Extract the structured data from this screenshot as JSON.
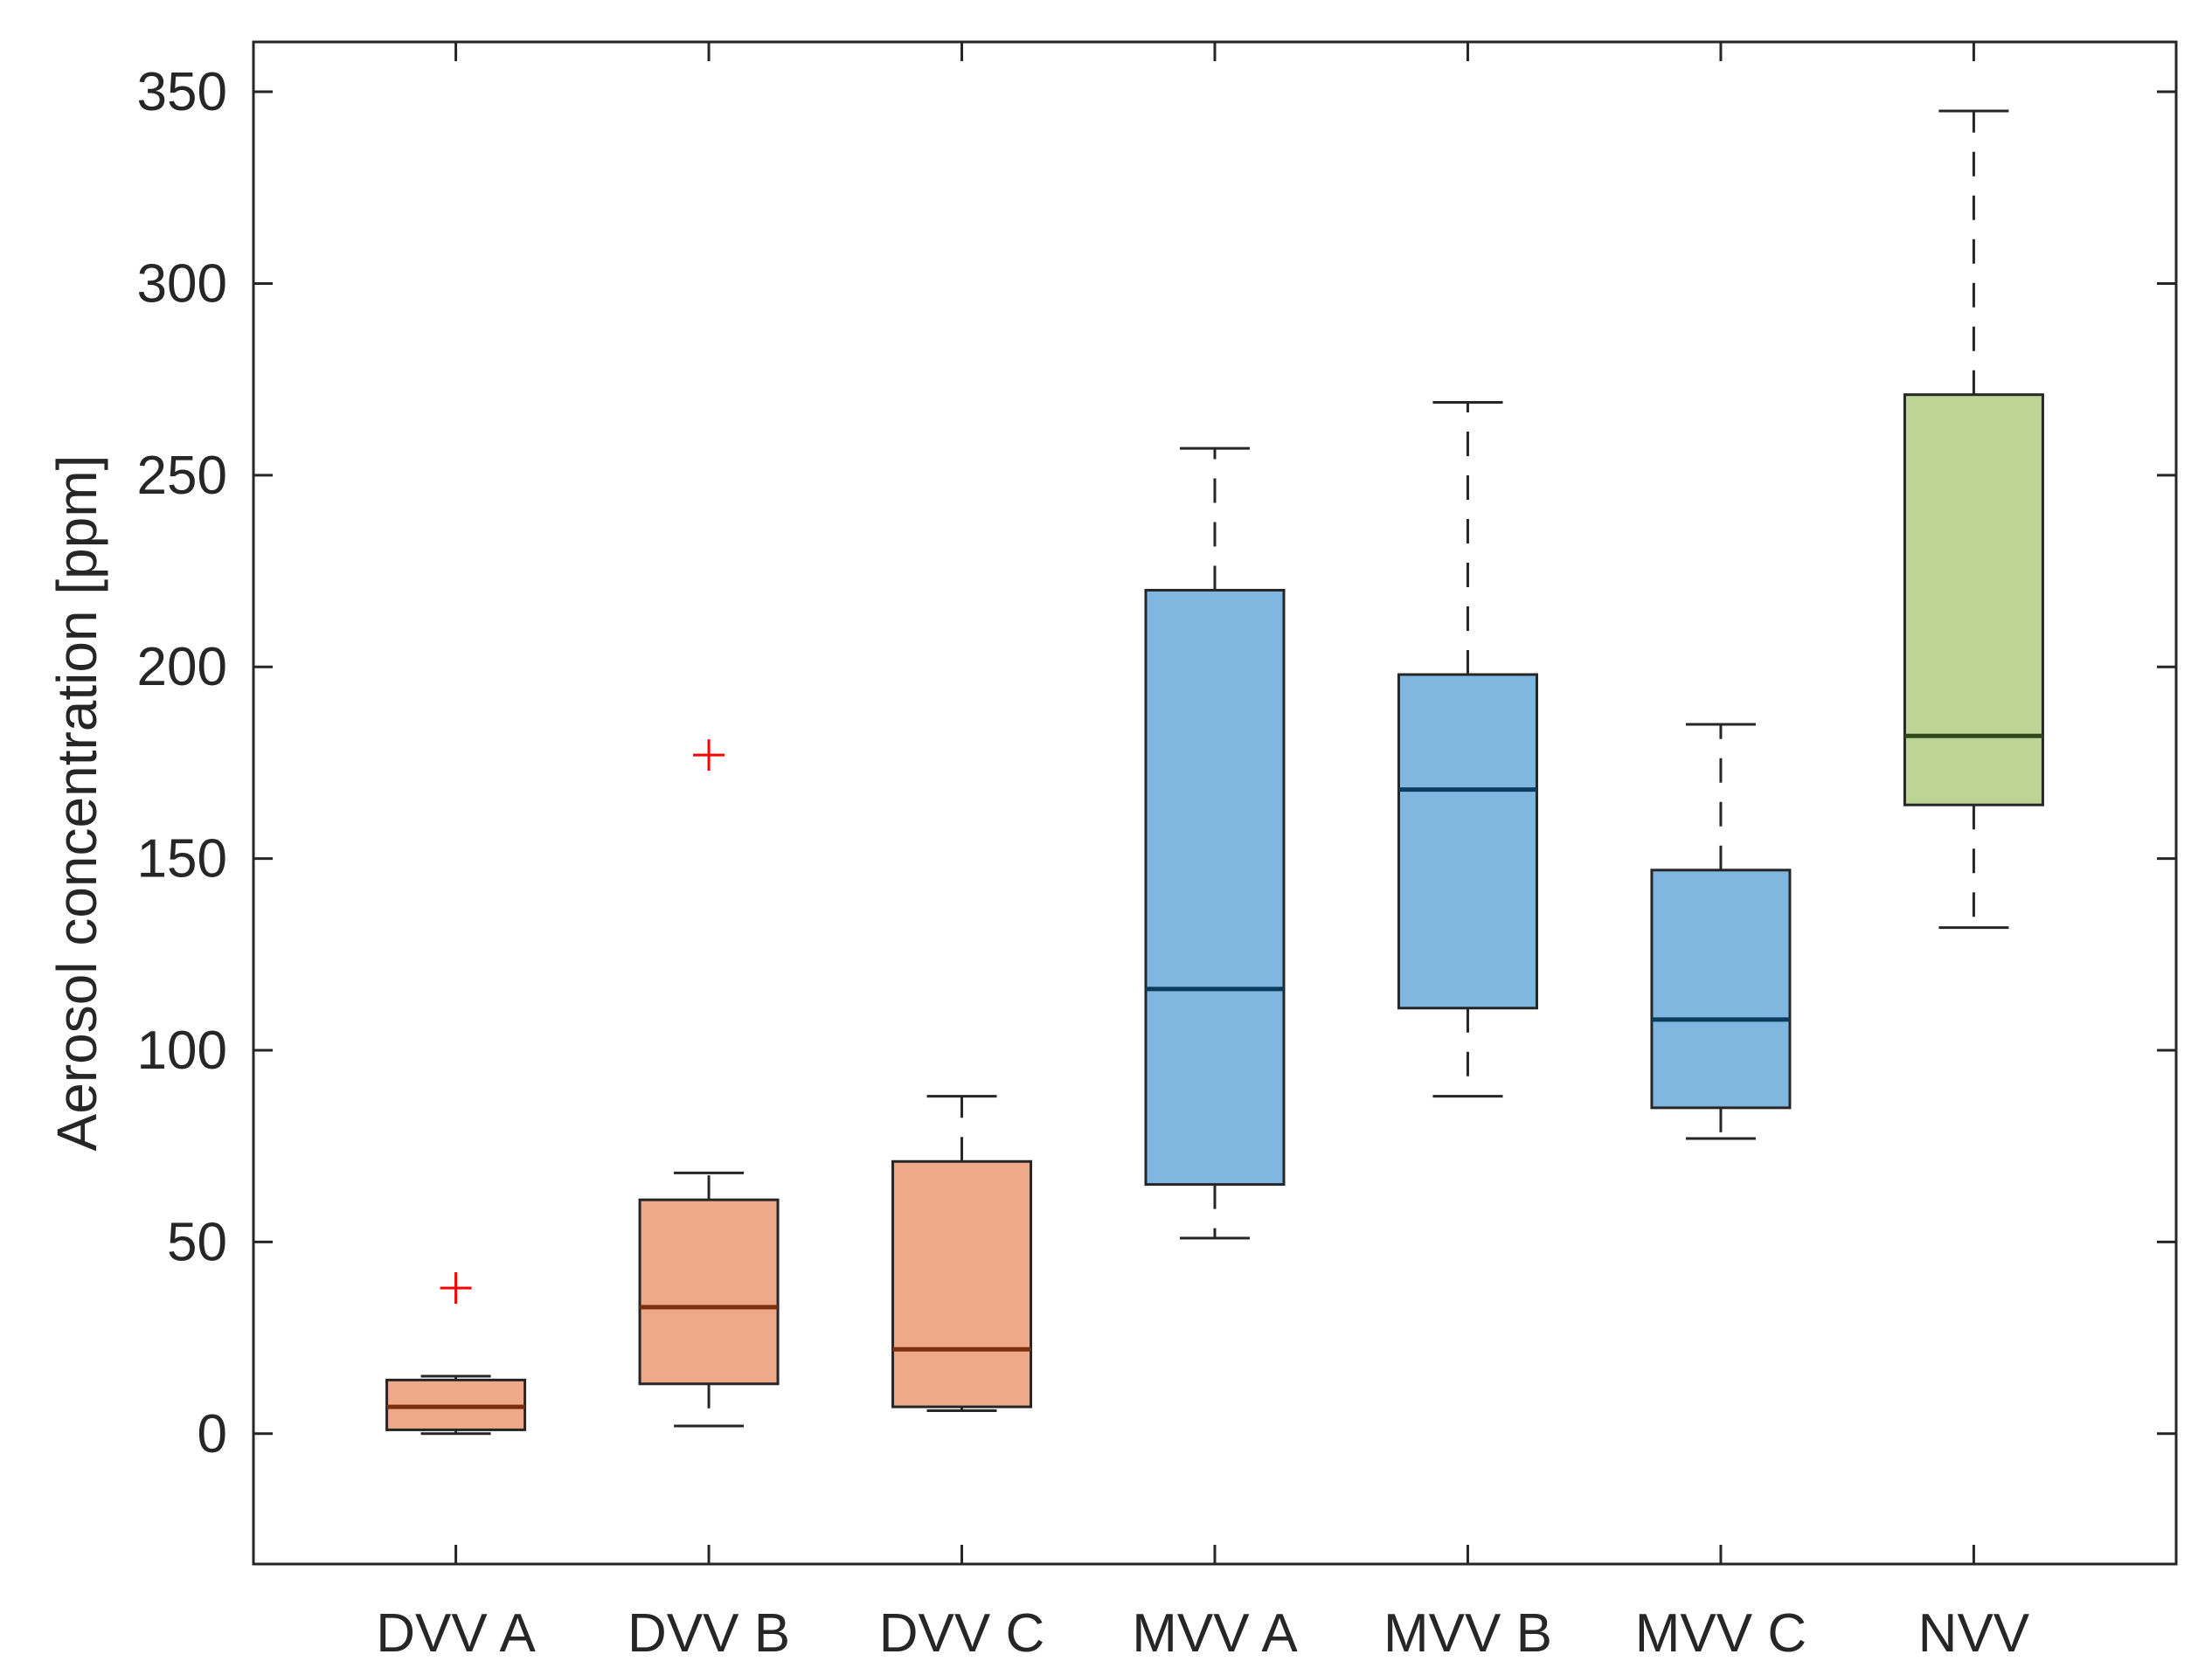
{
  "chart_data": {
    "type": "box",
    "ylabel": "Aerosol concentration [ppm]",
    "xlabel": "",
    "title": "",
    "ylim": [
      -34,
      363
    ],
    "yticks": [
      0,
      50,
      100,
      150,
      200,
      250,
      300,
      350
    ],
    "categories": [
      "DVV A",
      "DVV B",
      "DVV C",
      "MVV A",
      "MVV B",
      "MVV C",
      "NVV"
    ],
    "boxes": [
      {
        "category": "DVV A",
        "whisker_low": 0,
        "q1": 1,
        "median": 7,
        "q3": 14,
        "whisker_high": 15,
        "outliers": [
          38
        ],
        "fill": "#EDA98A",
        "median_color": "#7A2E0E"
      },
      {
        "category": "DVV B",
        "whisker_low": 2,
        "q1": 13,
        "median": 33,
        "q3": 61,
        "whisker_high": 68,
        "outliers": [
          177
        ],
        "fill": "#EDA98A",
        "median_color": "#7A2E0E"
      },
      {
        "category": "DVV C",
        "whisker_low": 6,
        "q1": 7,
        "median": 22,
        "q3": 71,
        "whisker_high": 88,
        "outliers": [],
        "fill": "#EDA98A",
        "median_color": "#7A2E0E"
      },
      {
        "category": "MVV A",
        "whisker_low": 51,
        "q1": 65,
        "median": 116,
        "q3": 220,
        "whisker_high": 257,
        "outliers": [],
        "fill": "#7FB7E0",
        "median_color": "#0B3C5D"
      },
      {
        "category": "MVV B",
        "whisker_low": 88,
        "q1": 111,
        "median": 168,
        "q3": 198,
        "whisker_high": 269,
        "outliers": [],
        "fill": "#7FB7E0",
        "median_color": "#0B3C5D"
      },
      {
        "category": "MVV C",
        "whisker_low": 77,
        "q1": 85,
        "median": 108,
        "q3": 147,
        "whisker_high": 185,
        "outliers": [],
        "fill": "#7FB7E0",
        "median_color": "#0B3C5D"
      },
      {
        "category": "NVV",
        "whisker_low": 132,
        "q1": 164,
        "median": 182,
        "q3": 271,
        "whisker_high": 345,
        "outliers": [],
        "fill": "#BCD597",
        "median_color": "#2F4A1A"
      }
    ],
    "grid": false,
    "outlier_color": "#FF0000",
    "axis_color": "#262626"
  }
}
